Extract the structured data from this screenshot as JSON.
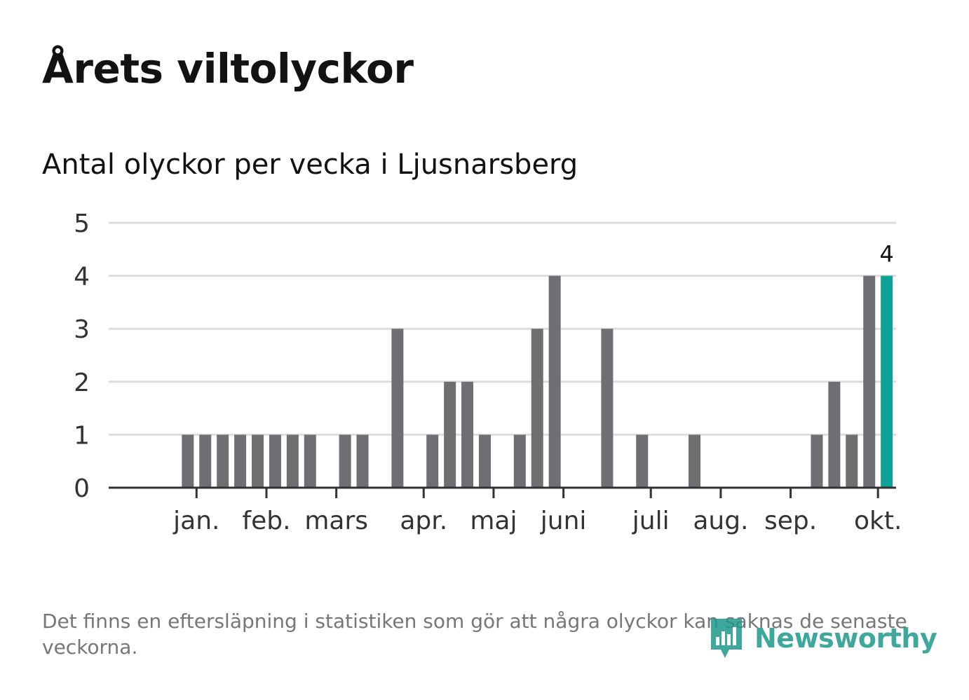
{
  "page": {
    "title": "Årets viltolyckor",
    "subtitle": "Antal olyckor per vecka i Ljusnarsberg",
    "note": "Det finns en eftersläpning i statistiken som gör att några olyckor kan saknas de senaste veckorna.",
    "brand": "Newsworthy"
  },
  "colors": {
    "bar": "#6f6e73",
    "highlight": "#10a298",
    "grid": "#dddddd",
    "axis": "#333333",
    "text": "#333333",
    "brand": "#1e9a8c"
  },
  "chart_data": {
    "type": "bar",
    "title": "Årets viltolyckor",
    "subtitle": "Antal olyckor per vecka i Ljusnarsberg",
    "xlabel": "",
    "ylabel": "",
    "ylim": [
      0,
      5
    ],
    "yticks": [
      0,
      1,
      2,
      3,
      4,
      5
    ],
    "grid": true,
    "weeks": [
      1,
      2,
      3,
      4,
      5,
      6,
      7,
      8,
      9,
      10,
      11,
      12,
      13,
      14,
      15,
      16,
      17,
      18,
      19,
      20,
      21,
      22,
      23,
      24,
      25,
      26,
      27,
      28,
      29,
      30,
      31,
      32,
      33,
      34,
      35,
      36,
      37,
      38,
      39,
      40,
      41,
      42,
      43,
      44,
      45
    ],
    "values": [
      0,
      0,
      1,
      1,
      1,
      1,
      1,
      1,
      1,
      1,
      0,
      1,
      1,
      0,
      3,
      0,
      1,
      2,
      2,
      1,
      0,
      1,
      3,
      4,
      0,
      0,
      3,
      0,
      1,
      0,
      0,
      1,
      0,
      0,
      0,
      0,
      0,
      0,
      1,
      2,
      1,
      4,
      4,
      0,
      0
    ],
    "highlight_index": 42,
    "highlight_label": "4",
    "month_ticks": [
      {
        "label": "jan.",
        "week": 3.5
      },
      {
        "label": "feb.",
        "week": 7.5
      },
      {
        "label": "mars",
        "week": 11.5
      },
      {
        "label": "apr.",
        "week": 16.5
      },
      {
        "label": "maj",
        "week": 20.5
      },
      {
        "label": "juni",
        "week": 24.5
      },
      {
        "label": "juli",
        "week": 29.5
      },
      {
        "label": "aug.",
        "week": 33.5
      },
      {
        "label": "sep.",
        "week": 37.5
      },
      {
        "label": "okt.",
        "week": 42.5
      }
    ]
  }
}
